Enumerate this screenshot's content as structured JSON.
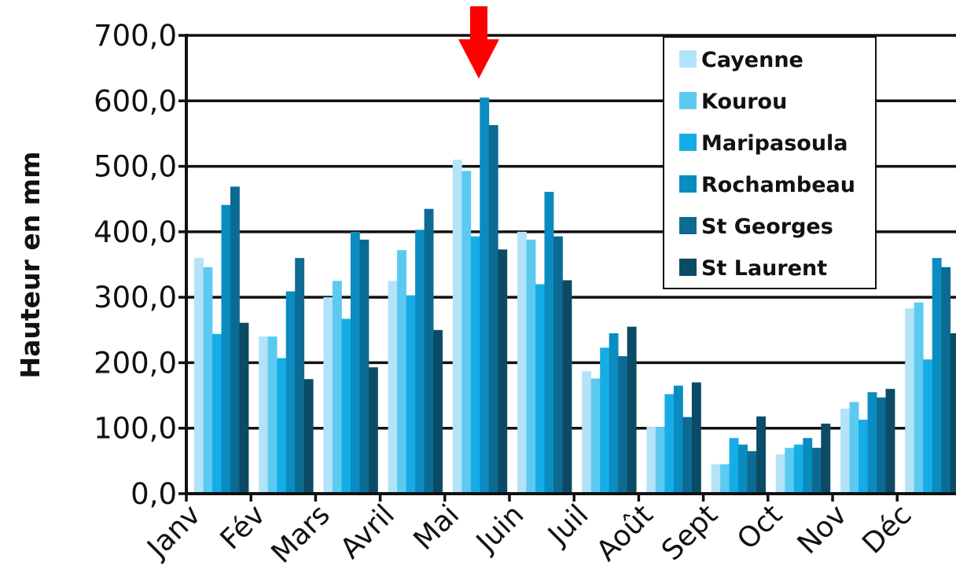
{
  "chart_data": {
    "type": "bar",
    "title": "",
    "xlabel": "",
    "ylabel": "Hauteur en mm",
    "ylim": [
      0,
      700
    ],
    "yticks": [
      "0,0",
      "100,0",
      "200,0",
      "300,0",
      "400,0",
      "500,0",
      "600,0",
      "700,0"
    ],
    "grid": true,
    "legend_position": "top-right",
    "categories": [
      "Janv",
      "Fév",
      "Mars",
      "Avril",
      "Mai",
      "Juin",
      "Juil",
      "Août",
      "Sept",
      "Oct",
      "Nov",
      "Déc"
    ],
    "series": [
      {
        "name": "Cayenne",
        "color": "#b3e3f8",
        "values": [
          360,
          240,
          300,
          325,
          510,
          400,
          187,
          102,
          45,
          60,
          130,
          283
        ]
      },
      {
        "name": "Kourou",
        "color": "#5ccaf0",
        "values": [
          346,
          240,
          325,
          372,
          493,
          388,
          176,
          102,
          45,
          70,
          140,
          292
        ]
      },
      {
        "name": "Maripasoula",
        "color": "#16ade6",
        "values": [
          244,
          207,
          267,
          303,
          393,
          320,
          223,
          152,
          85,
          75,
          113,
          205
        ]
      },
      {
        "name": "Rochambeau",
        "color": "#0a8cc0",
        "values": [
          441,
          309,
          400,
          403,
          605,
          461,
          245,
          165,
          75,
          85,
          155,
          360
        ]
      },
      {
        "name": "St Georges",
        "color": "#0d6b93",
        "values": [
          469,
          360,
          388,
          435,
          563,
          393,
          210,
          117,
          65,
          70,
          147,
          346
        ]
      },
      {
        "name": "St Laurent",
        "color": "#0b4b66",
        "values": [
          261,
          175,
          193,
          250,
          373,
          326,
          255,
          170,
          118,
          107,
          160,
          245
        ]
      }
    ],
    "annotation": {
      "type": "arrow",
      "color": "#ff0000",
      "points_to": "Mai"
    }
  }
}
